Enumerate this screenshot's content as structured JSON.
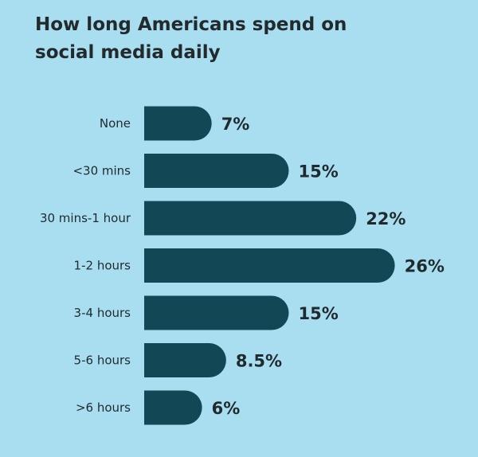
{
  "chart_data": {
    "type": "bar",
    "orientation": "horizontal",
    "title": "How long Americans spend on social media daily",
    "categories": [
      "None",
      "<30 mins",
      "30 mins-1 hour",
      "1-2 hours",
      "3-4 hours",
      "5-6 hours",
      ">6 hours"
    ],
    "values": [
      7,
      15,
      22,
      26,
      15,
      8.5,
      6
    ],
    "value_labels": [
      "7%",
      "15%",
      "22%",
      "26%",
      "15%",
      "8.5%",
      "6%"
    ],
    "xlabel": "",
    "ylabel": "",
    "grid": false,
    "legend": "none"
  },
  "colors": {
    "background": "#a9def0",
    "bar": "#124756",
    "text": "#1f2a2e"
  }
}
